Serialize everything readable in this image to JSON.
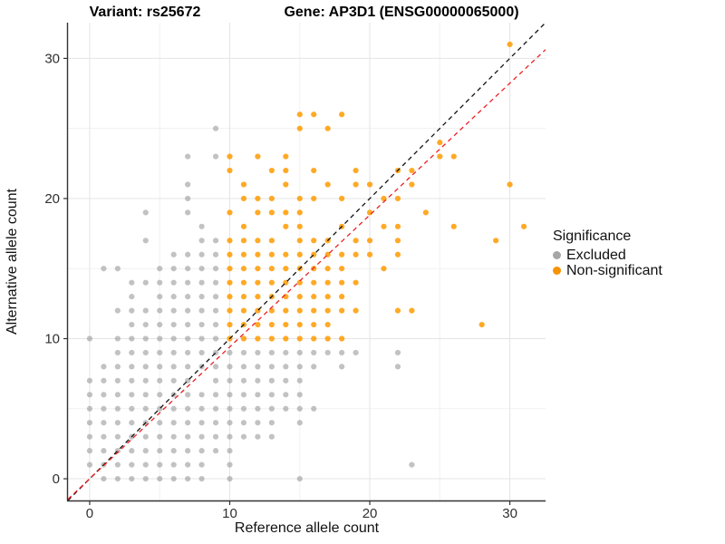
{
  "chart_data": {
    "type": "scatter",
    "titles": {
      "variant": "Variant: rs25672",
      "gene": "Gene: AP3D1 (ENSG00000065000)"
    },
    "xlabel": "Reference allele count",
    "ylabel": "Alternative allele count",
    "xlim": [
      -1.55,
      32.55
    ],
    "ylim": [
      -1.55,
      32.55
    ],
    "xticks": [
      0,
      10,
      20,
      30
    ],
    "yticks": [
      0,
      10,
      20,
      30
    ],
    "minor_ticks": [
      5,
      15,
      25
    ],
    "grid": "on",
    "colors": {
      "major_grid": "#e4e4e4",
      "minor_grid": "#f1f1f1",
      "axis_line": "#333333",
      "tick_label": "#303030"
    },
    "legend": {
      "title": "Significance",
      "position": "right"
    },
    "ref_lines": [
      {
        "name": "identity",
        "style": "dashed",
        "color": "#111111",
        "slope": 1,
        "intercept": 0
      },
      {
        "name": "expected-ratio",
        "style": "dashed",
        "color": "#ed2024",
        "slope": 0.941,
        "intercept": 0
      }
    ],
    "series": [
      {
        "name": "Excluded",
        "legend_color": "#a6a6a6",
        "point_color": "#999999",
        "opacity": 0.6,
        "points": [
          [
            1,
            0
          ],
          [
            2,
            0
          ],
          [
            3,
            0
          ],
          [
            4,
            0
          ],
          [
            5,
            0
          ],
          [
            6,
            0
          ],
          [
            7,
            0
          ],
          [
            8,
            0
          ],
          [
            10,
            0
          ],
          [
            15,
            0
          ],
          [
            0,
            1
          ],
          [
            1,
            1
          ],
          [
            2,
            1
          ],
          [
            3,
            1
          ],
          [
            4,
            1
          ],
          [
            5,
            1
          ],
          [
            6,
            1
          ],
          [
            7,
            1
          ],
          [
            8,
            1
          ],
          [
            10,
            1
          ],
          [
            23,
            1
          ],
          [
            0,
            2
          ],
          [
            1,
            2
          ],
          [
            2,
            2
          ],
          [
            3,
            2
          ],
          [
            4,
            2
          ],
          [
            5,
            2
          ],
          [
            6,
            2
          ],
          [
            7,
            2
          ],
          [
            8,
            2
          ],
          [
            9,
            2
          ],
          [
            10,
            2
          ],
          [
            0,
            3
          ],
          [
            1,
            3
          ],
          [
            2,
            3
          ],
          [
            3,
            3
          ],
          [
            4,
            3
          ],
          [
            5,
            3
          ],
          [
            6,
            3
          ],
          [
            7,
            3
          ],
          [
            8,
            3
          ],
          [
            9,
            3
          ],
          [
            10,
            3
          ],
          [
            11,
            3
          ],
          [
            12,
            3
          ],
          [
            13,
            3
          ],
          [
            0,
            4
          ],
          [
            1,
            4
          ],
          [
            2,
            4
          ],
          [
            3,
            4
          ],
          [
            4,
            4
          ],
          [
            5,
            4
          ],
          [
            6,
            4
          ],
          [
            7,
            4
          ],
          [
            8,
            4
          ],
          [
            9,
            4
          ],
          [
            10,
            4
          ],
          [
            11,
            4
          ],
          [
            12,
            4
          ],
          [
            13,
            4
          ],
          [
            15,
            4
          ],
          [
            0,
            5
          ],
          [
            1,
            5
          ],
          [
            2,
            5
          ],
          [
            3,
            5
          ],
          [
            4,
            5
          ],
          [
            5,
            5
          ],
          [
            6,
            5
          ],
          [
            7,
            5
          ],
          [
            8,
            5
          ],
          [
            9,
            5
          ],
          [
            10,
            5
          ],
          [
            11,
            5
          ],
          [
            12,
            5
          ],
          [
            13,
            5
          ],
          [
            14,
            5
          ],
          [
            15,
            5
          ],
          [
            16,
            5
          ],
          [
            0,
            6
          ],
          [
            1,
            6
          ],
          [
            2,
            6
          ],
          [
            3,
            6
          ],
          [
            4,
            6
          ],
          [
            5,
            6
          ],
          [
            6,
            6
          ],
          [
            7,
            6
          ],
          [
            8,
            6
          ],
          [
            9,
            6
          ],
          [
            10,
            6
          ],
          [
            11,
            6
          ],
          [
            12,
            6
          ],
          [
            13,
            6
          ],
          [
            14,
            6
          ],
          [
            15,
            6
          ],
          [
            0,
            7
          ],
          [
            1,
            7
          ],
          [
            2,
            7
          ],
          [
            3,
            7
          ],
          [
            4,
            7
          ],
          [
            5,
            7
          ],
          [
            6,
            7
          ],
          [
            7,
            7
          ],
          [
            9,
            7
          ],
          [
            10,
            7
          ],
          [
            11,
            7
          ],
          [
            12,
            7
          ],
          [
            13,
            7
          ],
          [
            14,
            7
          ],
          [
            15,
            7
          ],
          [
            1,
            8
          ],
          [
            2,
            8
          ],
          [
            3,
            8
          ],
          [
            4,
            8
          ],
          [
            5,
            8
          ],
          [
            6,
            8
          ],
          [
            7,
            8
          ],
          [
            8,
            8
          ],
          [
            9,
            8
          ],
          [
            10,
            8
          ],
          [
            11,
            8
          ],
          [
            12,
            8
          ],
          [
            13,
            8
          ],
          [
            14,
            8
          ],
          [
            15,
            8
          ],
          [
            16,
            8
          ],
          [
            18,
            8
          ],
          [
            22,
            8
          ],
          [
            2,
            9
          ],
          [
            3,
            9
          ],
          [
            4,
            9
          ],
          [
            5,
            9
          ],
          [
            6,
            9
          ],
          [
            7,
            9
          ],
          [
            8,
            9
          ],
          [
            9,
            9
          ],
          [
            10,
            9
          ],
          [
            11,
            9
          ],
          [
            12,
            9
          ],
          [
            13,
            9
          ],
          [
            14,
            9
          ],
          [
            15,
            9
          ],
          [
            16,
            9
          ],
          [
            17,
            9
          ],
          [
            18,
            9
          ],
          [
            19,
            9
          ],
          [
            22,
            9
          ],
          [
            0,
            10
          ],
          [
            2,
            10
          ],
          [
            3,
            10
          ],
          [
            4,
            10
          ],
          [
            5,
            10
          ],
          [
            6,
            10
          ],
          [
            7,
            10
          ],
          [
            8,
            10
          ],
          [
            9,
            10
          ],
          [
            3,
            11
          ],
          [
            4,
            11
          ],
          [
            5,
            11
          ],
          [
            6,
            11
          ],
          [
            7,
            11
          ],
          [
            8,
            11
          ],
          [
            9,
            11
          ],
          [
            2,
            12
          ],
          [
            3,
            12
          ],
          [
            4,
            12
          ],
          [
            5,
            12
          ],
          [
            6,
            12
          ],
          [
            7,
            12
          ],
          [
            8,
            12
          ],
          [
            9,
            12
          ],
          [
            3,
            13
          ],
          [
            5,
            13
          ],
          [
            6,
            13
          ],
          [
            7,
            13
          ],
          [
            8,
            13
          ],
          [
            9,
            13
          ],
          [
            3,
            14
          ],
          [
            4,
            14
          ],
          [
            5,
            14
          ],
          [
            6,
            14
          ],
          [
            7,
            14
          ],
          [
            8,
            14
          ],
          [
            9,
            14
          ],
          [
            1,
            15
          ],
          [
            2,
            15
          ],
          [
            5,
            15
          ],
          [
            6,
            15
          ],
          [
            7,
            15
          ],
          [
            8,
            15
          ],
          [
            9,
            15
          ],
          [
            6,
            16
          ],
          [
            7,
            16
          ],
          [
            8,
            16
          ],
          [
            9,
            16
          ],
          [
            4,
            17
          ],
          [
            8,
            17
          ],
          [
            9,
            17
          ],
          [
            8,
            18
          ],
          [
            4,
            19
          ],
          [
            7,
            19
          ],
          [
            7,
            20
          ],
          [
            7,
            21
          ],
          [
            7,
            23
          ],
          [
            9,
            23
          ],
          [
            9,
            25
          ]
        ]
      },
      {
        "name": "Non-significant",
        "legend_color": "#f59300",
        "point_color": "#ff9b00",
        "opacity": 0.85,
        "points": [
          [
            10,
            10
          ],
          [
            11,
            10
          ],
          [
            12,
            10
          ],
          [
            13,
            10
          ],
          [
            14,
            10
          ],
          [
            15,
            10
          ],
          [
            16,
            10
          ],
          [
            17,
            10
          ],
          [
            18,
            10
          ],
          [
            10,
            11
          ],
          [
            11,
            11
          ],
          [
            12,
            11
          ],
          [
            13,
            11
          ],
          [
            14,
            11
          ],
          [
            15,
            11
          ],
          [
            16,
            11
          ],
          [
            17,
            11
          ],
          [
            28,
            11
          ],
          [
            10,
            12
          ],
          [
            11,
            12
          ],
          [
            12,
            12
          ],
          [
            13,
            12
          ],
          [
            14,
            12
          ],
          [
            15,
            12
          ],
          [
            16,
            12
          ],
          [
            17,
            12
          ],
          [
            18,
            12
          ],
          [
            19,
            12
          ],
          [
            22,
            12
          ],
          [
            23,
            12
          ],
          [
            10,
            13
          ],
          [
            11,
            13
          ],
          [
            12,
            13
          ],
          [
            13,
            13
          ],
          [
            14,
            13
          ],
          [
            15,
            13
          ],
          [
            16,
            13
          ],
          [
            17,
            13
          ],
          [
            18,
            13
          ],
          [
            10,
            14
          ],
          [
            11,
            14
          ],
          [
            12,
            14
          ],
          [
            13,
            14
          ],
          [
            14,
            14
          ],
          [
            15,
            14
          ],
          [
            16,
            14
          ],
          [
            17,
            14
          ],
          [
            18,
            14
          ],
          [
            19,
            14
          ],
          [
            10,
            15
          ],
          [
            11,
            15
          ],
          [
            12,
            15
          ],
          [
            13,
            15
          ],
          [
            14,
            15
          ],
          [
            15,
            15
          ],
          [
            16,
            15
          ],
          [
            17,
            15
          ],
          [
            18,
            15
          ],
          [
            21,
            15
          ],
          [
            10,
            16
          ],
          [
            11,
            16
          ],
          [
            12,
            16
          ],
          [
            13,
            16
          ],
          [
            14,
            16
          ],
          [
            15,
            16
          ],
          [
            16,
            16
          ],
          [
            17,
            16
          ],
          [
            18,
            16
          ],
          [
            19,
            16
          ],
          [
            20,
            16
          ],
          [
            22,
            16
          ],
          [
            10,
            17
          ],
          [
            11,
            17
          ],
          [
            12,
            17
          ],
          [
            13,
            17
          ],
          [
            15,
            17
          ],
          [
            16,
            17
          ],
          [
            17,
            17
          ],
          [
            19,
            17
          ],
          [
            20,
            17
          ],
          [
            22,
            17
          ],
          [
            29,
            17
          ],
          [
            11,
            18
          ],
          [
            14,
            18
          ],
          [
            15,
            18
          ],
          [
            18,
            18
          ],
          [
            21,
            18
          ],
          [
            22,
            18
          ],
          [
            26,
            18
          ],
          [
            31,
            18
          ],
          [
            10,
            19
          ],
          [
            12,
            19
          ],
          [
            13,
            19
          ],
          [
            14,
            19
          ],
          [
            15,
            19
          ],
          [
            20,
            19
          ],
          [
            24,
            19
          ],
          [
            11,
            20
          ],
          [
            12,
            20
          ],
          [
            13,
            20
          ],
          [
            15,
            20
          ],
          [
            16,
            20
          ],
          [
            18,
            20
          ],
          [
            21,
            20
          ],
          [
            22,
            20
          ],
          [
            11,
            21
          ],
          [
            14,
            21
          ],
          [
            17,
            21
          ],
          [
            19,
            21
          ],
          [
            20,
            21
          ],
          [
            23,
            21
          ],
          [
            30,
            21
          ],
          [
            10,
            22
          ],
          [
            13,
            22
          ],
          [
            14,
            22
          ],
          [
            16,
            22
          ],
          [
            19,
            22
          ],
          [
            22,
            22
          ],
          [
            23,
            22
          ],
          [
            10,
            23
          ],
          [
            12,
            23
          ],
          [
            14,
            23
          ],
          [
            25,
            23
          ],
          [
            26,
            23
          ],
          [
            25,
            24
          ],
          [
            15,
            25
          ],
          [
            17,
            25
          ],
          [
            15,
            26
          ],
          [
            16,
            26
          ],
          [
            18,
            26
          ],
          [
            30,
            31
          ]
        ]
      }
    ]
  }
}
